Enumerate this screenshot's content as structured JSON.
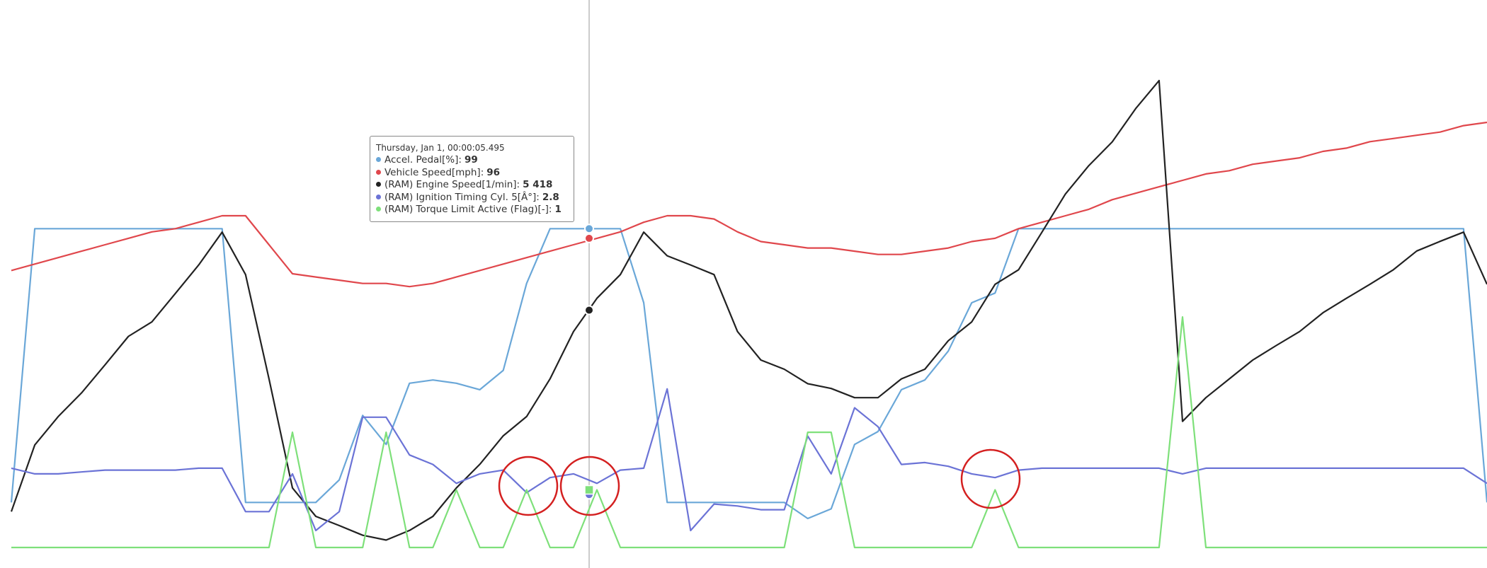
{
  "chart_data": {
    "type": "line",
    "series": [
      {
        "color": "#6aa7d8",
        "ylim": [
          0,
          170
        ],
        "values": [
          14,
          99,
          99,
          99,
          99,
          99,
          99,
          99,
          99,
          99,
          14,
          14,
          14,
          14,
          21,
          41,
          32,
          51,
          52,
          51,
          49,
          55,
          82,
          99,
          99,
          99,
          99,
          76,
          14,
          14,
          14,
          14,
          14,
          14,
          9,
          12,
          32,
          36,
          49,
          52,
          61,
          76,
          79,
          99,
          99,
          99,
          99,
          99,
          99,
          99,
          99,
          99,
          99,
          99,
          99,
          99,
          99,
          99,
          99,
          99,
          99,
          99,
          99,
          14
        ]
      },
      {
        "color": "#e0474c",
        "ylim": [
          0,
          170
        ],
        "values": [
          86,
          88,
          90,
          92,
          94,
          96,
          98,
          99,
          101,
          103,
          103,
          94,
          85,
          84,
          83,
          82,
          82,
          81,
          82,
          84,
          86,
          88,
          90,
          92,
          94,
          96,
          98,
          101,
          103,
          103,
          102,
          98,
          95,
          94,
          93,
          93,
          92,
          91,
          91,
          92,
          93,
          95,
          96,
          99,
          101,
          103,
          105,
          108,
          110,
          112,
          114,
          116,
          117,
          119,
          120,
          121,
          123,
          124,
          126,
          127,
          128,
          129,
          131,
          132
        ]
      },
      {
        "color": "#222222",
        "ylim": [
          0,
          12500
        ],
        "values": [
          820,
          2340,
          2990,
          3530,
          4170,
          4820,
          5150,
          5800,
          6450,
          7200,
          6230,
          3850,
          1360,
          710,
          500,
          280,
          170,
          390,
          710,
          1360,
          1900,
          2550,
          2990,
          3850,
          4930,
          5690,
          6230,
          7200,
          6660,
          6450,
          6230,
          4930,
          4280,
          4070,
          3740,
          3630,
          3420,
          3420,
          3850,
          4070,
          4720,
          5150,
          6010,
          6340,
          7200,
          8070,
          8720,
          9260,
          10020,
          10660,
          2880,
          3420,
          3850,
          4280,
          4610,
          4930,
          5360,
          5690,
          6010,
          6340,
          6770,
          6990,
          7200,
          6010
        ]
      },
      {
        "color": "#6b73d6",
        "ylim": [
          0,
          29
        ],
        "values": [
          4.2,
          3.9,
          3.9,
          4.0,
          4.1,
          4.1,
          4.1,
          4.1,
          4.2,
          4.2,
          1.9,
          1.9,
          3.9,
          0.9,
          1.9,
          6.9,
          6.9,
          4.9,
          4.4,
          3.4,
          3.9,
          4.1,
          2.9,
          3.7,
          3.9,
          3.4,
          4.1,
          4.2,
          8.4,
          0.9,
          2.3,
          2.2,
          2.0,
          2.0,
          5.9,
          3.9,
          7.4,
          6.4,
          4.4,
          4.5,
          4.3,
          3.9,
          3.7,
          4.1,
          4.2,
          4.2,
          4.2,
          4.2,
          4.2,
          4.2,
          3.9,
          4.2,
          4.2,
          4.2,
          4.2,
          4.2,
          4.2,
          4.2,
          4.2,
          4.2,
          4.2,
          4.2,
          4.2,
          3.4
        ]
      },
      {
        "color": "#7ee07a",
        "ylim": [
          0,
          9.5
        ],
        "values": [
          0,
          0,
          0,
          0,
          0,
          0,
          0,
          0,
          0,
          0,
          0,
          0,
          2,
          0,
          0,
          0,
          2,
          0,
          0,
          1,
          0,
          0,
          1,
          0,
          0,
          1,
          0,
          0,
          0,
          0,
          0,
          0,
          0,
          0,
          2,
          2,
          0,
          0,
          0,
          0,
          0,
          0,
          1,
          0,
          0,
          0,
          0,
          0,
          0,
          0,
          4,
          0,
          0,
          0,
          0,
          0,
          0,
          0,
          0,
          0,
          0,
          0,
          0,
          0
        ]
      }
    ],
    "tooltip": {
      "date": "Thursday, Jan 1, 00:00:05.495",
      "rows": [
        {
          "label": "Accel. Pedal[%]:",
          "value": 99
        },
        {
          "label": "Vehicle Speed[mph]:",
          "value": 96
        },
        {
          "label": "(RAM) Engine Speed[1/min]:",
          "value": {
            "value": 5418,
            "label": "5 418"
          }
        },
        {
          "label": "(RAM) Ignition Timing Cyl. 5[Â°]:",
          "value": 2.8
        },
        {
          "label": "(RAM) Torque Limit Active (Flag)[-]:",
          "value": 1
        }
      ]
    }
  }
}
